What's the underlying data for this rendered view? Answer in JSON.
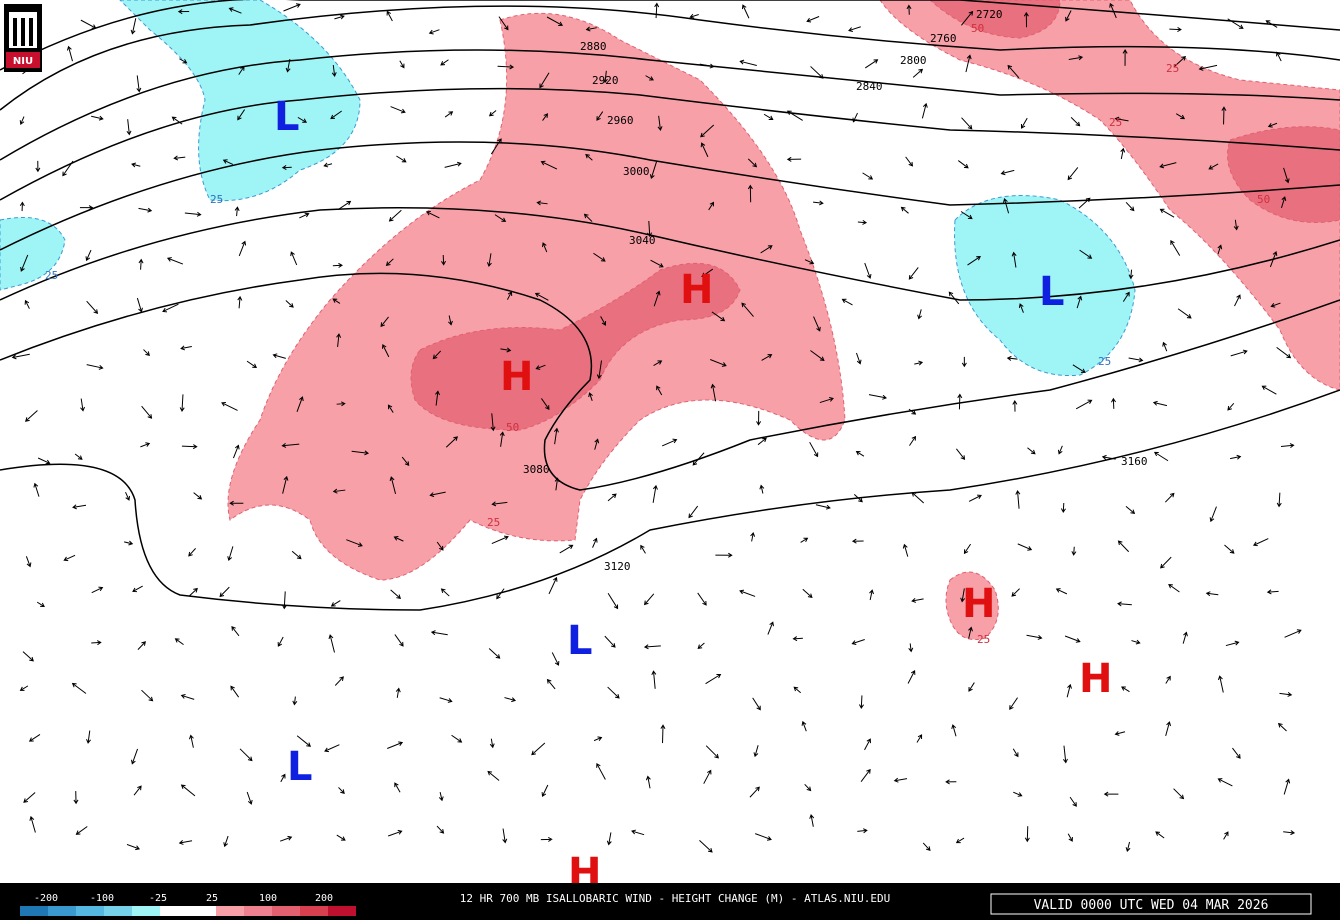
{
  "logo": "NIU",
  "contours": [
    "2720",
    "2760",
    "2800",
    "2840",
    "2880",
    "2920",
    "2960",
    "3000",
    "3040",
    "3080",
    "3120",
    "3160"
  ],
  "centers": [
    "L",
    "L",
    "L",
    "L",
    "H",
    "H",
    "H",
    "H",
    "H"
  ],
  "change_labels": [
    "25",
    "25",
    "25",
    "50",
    "25",
    "25",
    "25",
    "25",
    "50",
    "50"
  ],
  "legend": {
    "ticks": [
      "-200",
      "-100",
      "-25",
      "25",
      "100",
      "200"
    ]
  },
  "footer": {
    "title": "12 HR 700 MB ISALLOBARIC WIND - HEIGHT CHANGE (M) - ATLAS.NIU.EDU",
    "valid": "VALID 0000 UTC WED 04 MAR 2026"
  }
}
